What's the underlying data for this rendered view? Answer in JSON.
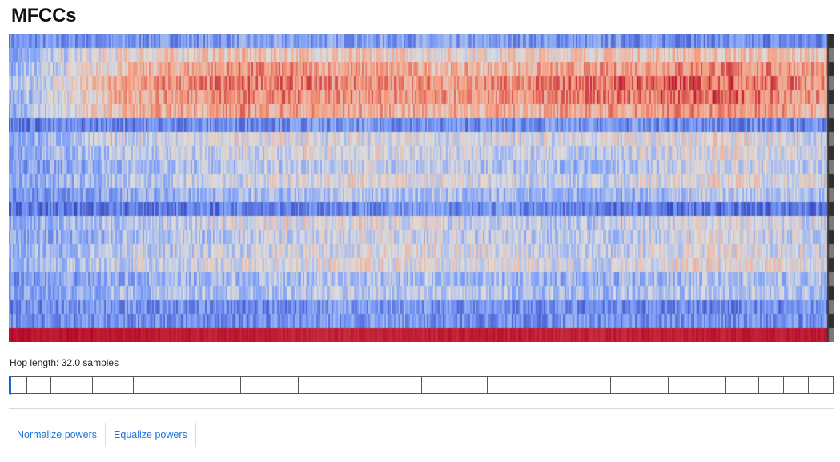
{
  "header": {
    "title": "MFCCs"
  },
  "hop_label": "Hop length: 32.0 samples",
  "frame_boundaries": [
    0.02,
    0.05,
    0.1,
    0.15,
    0.21,
    0.28,
    0.35,
    0.42,
    0.5,
    0.58,
    0.66,
    0.73,
    0.8,
    0.87,
    0.91,
    0.94,
    0.97,
    1.0
  ],
  "actions": {
    "normalize_label": "Normalize powers",
    "equalize_label": "Equalize powers"
  },
  "colors": {
    "low": "#3b4cc0",
    "mid": "#dddddd",
    "high": "#b40426",
    "accent": "#1a73d9"
  },
  "chart_data": {
    "type": "heatmap",
    "colormap": "coolwarm",
    "n_coefficients": 22,
    "n_frames": 512,
    "row_profiles": [
      [
        0.2,
        0.22,
        0.25,
        0.26,
        0.25,
        0.22,
        0.2,
        0.18
      ],
      [
        0.3,
        0.55,
        0.62,
        0.58,
        0.55,
        0.6,
        0.62,
        0.6
      ],
      [
        0.32,
        0.62,
        0.75,
        0.7,
        0.65,
        0.7,
        0.78,
        0.72
      ],
      [
        0.35,
        0.7,
        0.8,
        0.75,
        0.72,
        0.82,
        0.85,
        0.75
      ],
      [
        0.3,
        0.68,
        0.78,
        0.74,
        0.7,
        0.78,
        0.85,
        0.72
      ],
      [
        0.32,
        0.65,
        0.72,
        0.68,
        0.66,
        0.7,
        0.75,
        0.68
      ],
      [
        0.15,
        0.18,
        0.2,
        0.22,
        0.2,
        0.22,
        0.18,
        0.18
      ],
      [
        0.28,
        0.45,
        0.52,
        0.48,
        0.5,
        0.45,
        0.55,
        0.45
      ],
      [
        0.3,
        0.4,
        0.45,
        0.5,
        0.45,
        0.4,
        0.52,
        0.45
      ],
      [
        0.25,
        0.35,
        0.4,
        0.45,
        0.4,
        0.35,
        0.48,
        0.4
      ],
      [
        0.28,
        0.38,
        0.45,
        0.52,
        0.48,
        0.42,
        0.55,
        0.48
      ],
      [
        0.2,
        0.3,
        0.35,
        0.4,
        0.35,
        0.3,
        0.42,
        0.38
      ],
      [
        0.12,
        0.14,
        0.16,
        0.2,
        0.22,
        0.15,
        0.12,
        0.14
      ],
      [
        0.3,
        0.4,
        0.48,
        0.52,
        0.45,
        0.4,
        0.52,
        0.45
      ],
      [
        0.28,
        0.35,
        0.42,
        0.48,
        0.42,
        0.38,
        0.5,
        0.42
      ],
      [
        0.3,
        0.42,
        0.45,
        0.5,
        0.5,
        0.42,
        0.52,
        0.45
      ],
      [
        0.32,
        0.45,
        0.48,
        0.52,
        0.5,
        0.45,
        0.55,
        0.48
      ],
      [
        0.22,
        0.3,
        0.35,
        0.38,
        0.35,
        0.3,
        0.38,
        0.35
      ],
      [
        0.25,
        0.35,
        0.38,
        0.42,
        0.4,
        0.35,
        0.4,
        0.38
      ],
      [
        0.18,
        0.22,
        0.18,
        0.25,
        0.22,
        0.2,
        0.18,
        0.2
      ],
      [
        0.2,
        0.22,
        0.2,
        0.25,
        0.2,
        0.22,
        0.2,
        0.22
      ],
      [
        0.98,
        0.97,
        0.96,
        0.95,
        0.96,
        0.95,
        0.96,
        0.97
      ]
    ]
  }
}
